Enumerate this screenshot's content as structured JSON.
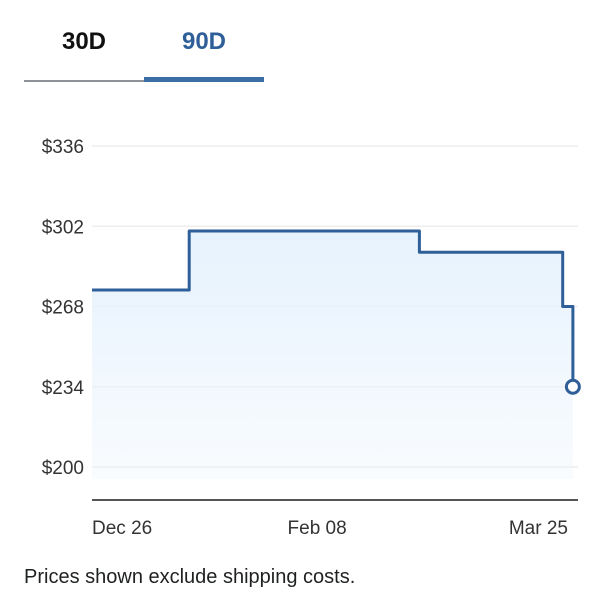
{
  "tabs": [
    {
      "label": "30D",
      "active": false
    },
    {
      "label": "90D",
      "active": true
    }
  ],
  "footnote": "Prices shown exclude shipping costs.",
  "colors": {
    "line": "#2f5f98",
    "fill": "#e6f2fd",
    "grid": "#eeeeee",
    "axis": "#555555"
  },
  "chart_data": {
    "type": "line",
    "step": true,
    "y_ticks": [
      {
        "value": 336,
        "label": "$336"
      },
      {
        "value": 302,
        "label": "$302"
      },
      {
        "value": 268,
        "label": "$268"
      },
      {
        "value": 234,
        "label": "$234"
      },
      {
        "value": 200,
        "label": "$200"
      }
    ],
    "ylim": [
      200,
      336
    ],
    "x_ticks": [
      {
        "date": "2023-12-26",
        "label": "Dec 26"
      },
      {
        "date": "2024-02-08",
        "label": "Feb 08"
      },
      {
        "date": "2024-03-25",
        "label": "Mar 25"
      }
    ],
    "xlim": [
      "2023-12-26",
      "2024-03-30"
    ],
    "series": [
      {
        "points": [
          {
            "date": "2023-12-26",
            "price": 275
          },
          {
            "date": "2024-01-14",
            "price": 275
          },
          {
            "date": "2024-01-14",
            "price": 300
          },
          {
            "date": "2024-02-28",
            "price": 300
          },
          {
            "date": "2024-02-28",
            "price": 291
          },
          {
            "date": "2024-03-27",
            "price": 291
          },
          {
            "date": "2024-03-27",
            "price": 268
          },
          {
            "date": "2024-03-29",
            "price": 268
          },
          {
            "date": "2024-03-29",
            "price": 234
          }
        ]
      }
    ],
    "end_marker": {
      "date": "2024-03-29",
      "price": 234
    }
  }
}
